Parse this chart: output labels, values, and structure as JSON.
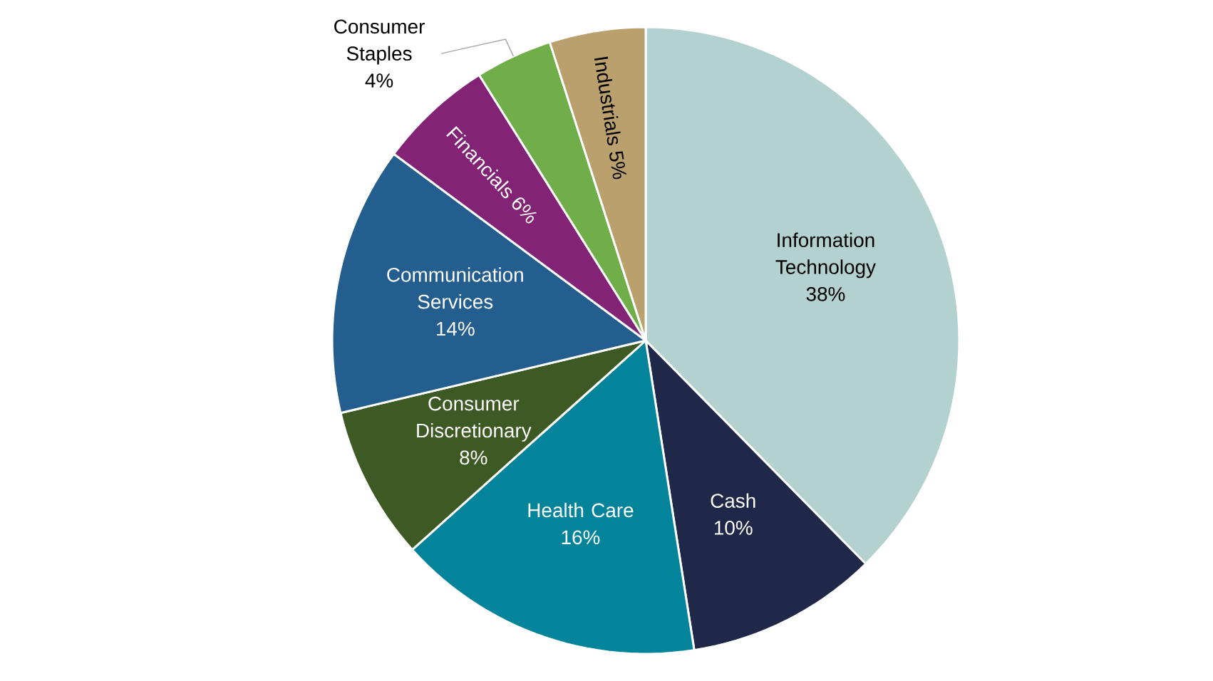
{
  "chart_data": {
    "type": "pie",
    "categories": [
      "Information Technology",
      "Cash",
      "Health Care",
      "Consumer Discretionary",
      "Communication Services",
      "Financials",
      "Consumer Staples",
      "Industrials"
    ],
    "values": [
      38,
      10,
      16,
      8,
      14,
      6,
      4,
      5
    ],
    "value_labels": [
      "38%",
      "10%",
      "16%",
      "8%",
      "14%",
      "6%",
      "4%",
      "5%"
    ],
    "colors": [
      "#b3d1cf",
      "#1f2849",
      "#03849a",
      "#3e5a24",
      "#245e8e",
      "#832376",
      "#6fae48",
      "#b9a06c"
    ]
  }
}
